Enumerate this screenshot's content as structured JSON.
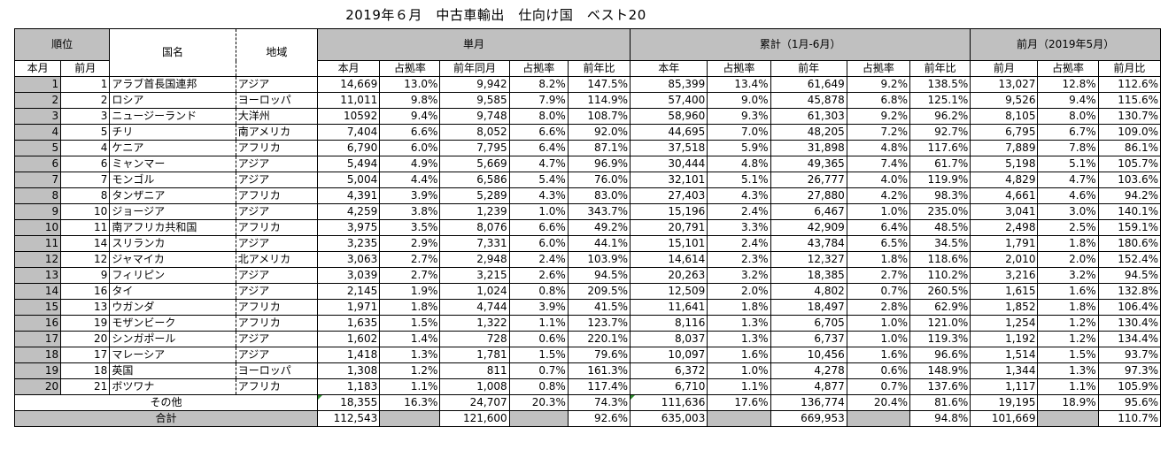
{
  "title": "2019年６月　中古車輸出　仕向け国　ベスト20",
  "headers": {
    "rank": "順位",
    "country": "国名",
    "region": "地域",
    "single_month": "単月",
    "cumulative": "累計（1月-6月）",
    "prev_month": "前月（2019年5月）",
    "rank_this": "本月",
    "rank_prev": "前月",
    "sm_this": "本月",
    "sm_share": "占拠率",
    "sm_ly": "前年同月",
    "sm_ly_share": "占拠率",
    "sm_yoy": "前年比",
    "cu_this": "本年",
    "cu_share": "占拠率",
    "cu_ly": "前年",
    "cu_ly_share": "占拠率",
    "cu_yoy": "前年比",
    "pm_val": "前月",
    "pm_share": "占拠率",
    "pm_ratio": "前月比"
  },
  "rows": [
    {
      "rank": "1",
      "prev": "1",
      "country": "アラブ首長国連邦",
      "region": "アジア",
      "v1": "14,669",
      "s1": "13.0%",
      "v2": "9,942",
      "s2": "8.2%",
      "y1": "147.5%",
      "v3": "85,399",
      "s3": "13.4%",
      "v4": "61,649",
      "s4": "9.2%",
      "y2": "138.5%",
      "v5": "13,027",
      "s5": "12.8%",
      "y3": "112.6%"
    },
    {
      "rank": "2",
      "prev": "2",
      "country": "ロシア",
      "region": "ヨーロッパ",
      "v1": "11,011",
      "s1": "9.8%",
      "v2": "9,585",
      "s2": "7.9%",
      "y1": "114.9%",
      "v3": "57,400",
      "s3": "9.0%",
      "v4": "45,878",
      "s4": "6.8%",
      "y2": "125.1%",
      "v5": "9,526",
      "s5": "9.4%",
      "y3": "115.6%"
    },
    {
      "rank": "3",
      "prev": "3",
      "country": "ニュージーランド",
      "region": "大洋州",
      "v1": "10592",
      "s1": "9.4%",
      "v2": "9,748",
      "s2": "8.0%",
      "y1": "108.7%",
      "v3": "58,960",
      "s3": "9.3%",
      "v4": "61,303",
      "s4": "9.2%",
      "y2": "96.2%",
      "v5": "8,105",
      "s5": "8.0%",
      "y3": "130.7%"
    },
    {
      "rank": "4",
      "prev": "5",
      "country": "チリ",
      "region": "南アメリカ",
      "v1": "7,404",
      "s1": "6.6%",
      "v2": "8,052",
      "s2": "6.6%",
      "y1": "92.0%",
      "v3": "44,695",
      "s3": "7.0%",
      "v4": "48,205",
      "s4": "7.2%",
      "y2": "92.7%",
      "v5": "6,795",
      "s5": "6.7%",
      "y3": "109.0%"
    },
    {
      "rank": "5",
      "prev": "4",
      "country": "ケニア",
      "region": "アフリカ",
      "v1": "6,790",
      "s1": "6.0%",
      "v2": "7,795",
      "s2": "6.4%",
      "y1": "87.1%",
      "v3": "37,518",
      "s3": "5.9%",
      "v4": "31,898",
      "s4": "4.8%",
      "y2": "117.6%",
      "v5": "7,889",
      "s5": "7.8%",
      "y3": "86.1%"
    },
    {
      "rank": "6",
      "prev": "6",
      "country": "ミャンマー",
      "region": "アジア",
      "v1": "5,494",
      "s1": "4.9%",
      "v2": "5,669",
      "s2": "4.7%",
      "y1": "96.9%",
      "v3": "30,444",
      "s3": "4.8%",
      "v4": "49,365",
      "s4": "7.4%",
      "y2": "61.7%",
      "v5": "5,198",
      "s5": "5.1%",
      "y3": "105.7%"
    },
    {
      "rank": "7",
      "prev": "7",
      "country": "モンゴル",
      "region": "アジア",
      "v1": "5,004",
      "s1": "4.4%",
      "v2": "6,586",
      "s2": "5.4%",
      "y1": "76.0%",
      "v3": "32,101",
      "s3": "5.1%",
      "v4": "26,777",
      "s4": "4.0%",
      "y2": "119.9%",
      "v5": "4,829",
      "s5": "4.7%",
      "y3": "103.6%"
    },
    {
      "rank": "8",
      "prev": "8",
      "country": "タンザニア",
      "region": "アフリカ",
      "v1": "4,391",
      "s1": "3.9%",
      "v2": "5,289",
      "s2": "4.3%",
      "y1": "83.0%",
      "v3": "27,403",
      "s3": "4.3%",
      "v4": "27,880",
      "s4": "4.2%",
      "y2": "98.3%",
      "v5": "4,661",
      "s5": "4.6%",
      "y3": "94.2%"
    },
    {
      "rank": "9",
      "prev": "10",
      "country": "ジョージア",
      "region": "アジア",
      "v1": "4,259",
      "s1": "3.8%",
      "v2": "1,239",
      "s2": "1.0%",
      "y1": "343.7%",
      "v3": "15,196",
      "s3": "2.4%",
      "v4": "6,467",
      "s4": "1.0%",
      "y2": "235.0%",
      "v5": "3,041",
      "s5": "3.0%",
      "y3": "140.1%"
    },
    {
      "rank": "10",
      "prev": "11",
      "country": "南アフリカ共和国",
      "region": "アフリカ",
      "v1": "3,975",
      "s1": "3.5%",
      "v2": "8,076",
      "s2": "6.6%",
      "y1": "49.2%",
      "v3": "20,791",
      "s3": "3.3%",
      "v4": "42,909",
      "s4": "6.4%",
      "y2": "48.5%",
      "v5": "2,498",
      "s5": "2.5%",
      "y3": "159.1%"
    },
    {
      "rank": "11",
      "prev": "14",
      "country": "スリランカ",
      "region": "アジア",
      "v1": "3,235",
      "s1": "2.9%",
      "v2": "7,331",
      "s2": "6.0%",
      "y1": "44.1%",
      "v3": "15,101",
      "s3": "2.4%",
      "v4": "43,784",
      "s4": "6.5%",
      "y2": "34.5%",
      "v5": "1,791",
      "s5": "1.8%",
      "y3": "180.6%"
    },
    {
      "rank": "12",
      "prev": "12",
      "country": "ジャマイカ",
      "region": "北アメリカ",
      "v1": "3,063",
      "s1": "2.7%",
      "v2": "2,948",
      "s2": "2.4%",
      "y1": "103.9%",
      "v3": "14,614",
      "s3": "2.3%",
      "v4": "12,327",
      "s4": "1.8%",
      "y2": "118.6%",
      "v5": "2,010",
      "s5": "2.0%",
      "y3": "152.4%"
    },
    {
      "rank": "13",
      "prev": "9",
      "country": "フィリピン",
      "region": "アジア",
      "v1": "3,039",
      "s1": "2.7%",
      "v2": "3,215",
      "s2": "2.6%",
      "y1": "94.5%",
      "v3": "20,263",
      "s3": "3.2%",
      "v4": "18,385",
      "s4": "2.7%",
      "y2": "110.2%",
      "v5": "3,216",
      "s5": "3.2%",
      "y3": "94.5%"
    },
    {
      "rank": "14",
      "prev": "16",
      "country": "タイ",
      "region": "アジア",
      "v1": "2,145",
      "s1": "1.9%",
      "v2": "1,024",
      "s2": "0.8%",
      "y1": "209.5%",
      "v3": "12,509",
      "s3": "2.0%",
      "v4": "4,802",
      "s4": "0.7%",
      "y2": "260.5%",
      "v5": "1,615",
      "s5": "1.6%",
      "y3": "132.8%"
    },
    {
      "rank": "15",
      "prev": "13",
      "country": "ウガンダ",
      "region": "アフリカ",
      "v1": "1,971",
      "s1": "1.8%",
      "v2": "4,744",
      "s2": "3.9%",
      "y1": "41.5%",
      "v3": "11,641",
      "s3": "1.8%",
      "v4": "18,497",
      "s4": "2.8%",
      "y2": "62.9%",
      "v5": "1,852",
      "s5": "1.8%",
      "y3": "106.4%"
    },
    {
      "rank": "16",
      "prev": "19",
      "country": "モザンビーク",
      "region": "アフリカ",
      "v1": "1,635",
      "s1": "1.5%",
      "v2": "1,322",
      "s2": "1.1%",
      "y1": "123.7%",
      "v3": "8,116",
      "s3": "1.3%",
      "v4": "6,705",
      "s4": "1.0%",
      "y2": "121.0%",
      "v5": "1,254",
      "s5": "1.2%",
      "y3": "130.4%"
    },
    {
      "rank": "17",
      "prev": "20",
      "country": "シンガポール",
      "region": "アジア",
      "v1": "1,602",
      "s1": "1.4%",
      "v2": "728",
      "s2": "0.6%",
      "y1": "220.1%",
      "v3": "8,037",
      "s3": "1.3%",
      "v4": "6,737",
      "s4": "1.0%",
      "y2": "119.3%",
      "v5": "1,192",
      "s5": "1.2%",
      "y3": "134.4%"
    },
    {
      "rank": "18",
      "prev": "17",
      "country": "マレーシア",
      "region": "アジア",
      "v1": "1,418",
      "s1": "1.3%",
      "v2": "1,781",
      "s2": "1.5%",
      "y1": "79.6%",
      "v3": "10,097",
      "s3": "1.6%",
      "v4": "10,456",
      "s4": "1.6%",
      "y2": "96.6%",
      "v5": "1,514",
      "s5": "1.5%",
      "y3": "93.7%"
    },
    {
      "rank": "19",
      "prev": "18",
      "country": "英国",
      "region": "ヨーロッパ",
      "v1": "1,308",
      "s1": "1.2%",
      "v2": "811",
      "s2": "0.7%",
      "y1": "161.3%",
      "v3": "6,372",
      "s3": "1.0%",
      "v4": "4,278",
      "s4": "0.6%",
      "y2": "148.9%",
      "v5": "1,344",
      "s5": "1.3%",
      "y3": "97.3%"
    },
    {
      "rank": "20",
      "prev": "21",
      "country": "ボツワナ",
      "region": "アフリカ",
      "v1": "1,183",
      "s1": "1.1%",
      "v2": "1,008",
      "s2": "0.8%",
      "y1": "117.4%",
      "v3": "6,710",
      "s3": "1.1%",
      "v4": "4,877",
      "s4": "0.7%",
      "y2": "137.6%",
      "v5": "1,117",
      "s5": "1.1%",
      "y3": "105.9%"
    }
  ],
  "other": {
    "label": "その他",
    "v1": "18,355",
    "s1": "16.3%",
    "v2": "24,707",
    "s2": "20.3%",
    "y1": "74.3%",
    "v3": "111,636",
    "s3": "17.6%",
    "v4": "136,774",
    "s4": "20.4%",
    "y2": "81.6%",
    "v5": "19,195",
    "s5": "18.9%",
    "y3": "95.6%"
  },
  "total": {
    "label": "合計",
    "v1": "112,543",
    "v2": "121,600",
    "y1": "92.6%",
    "v3": "635,003",
    "v4": "669,953",
    "y2": "94.8%",
    "v5": "101,669",
    "y3": "110.7%"
  }
}
